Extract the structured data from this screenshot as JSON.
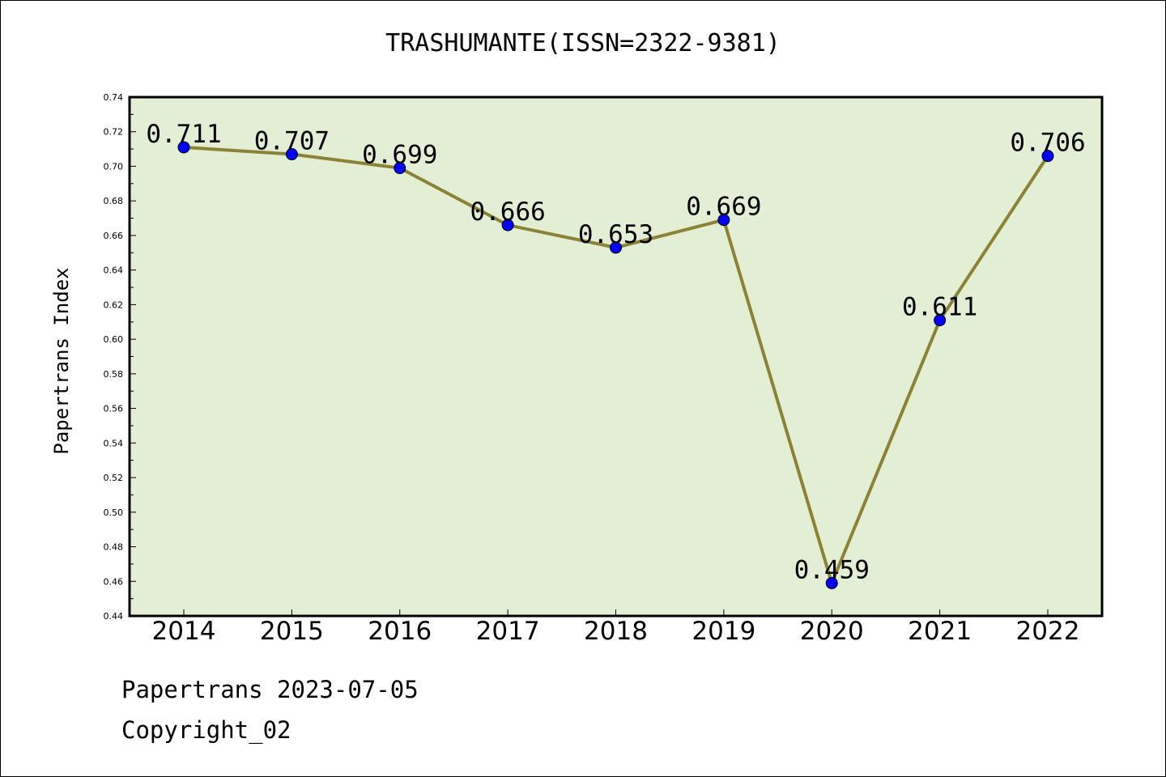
{
  "chart_data": {
    "type": "line",
    "title": "TRASHUMANTE(ISSN=2322-9381)",
    "xlabel": "",
    "ylabel": "Papertrans Index",
    "categories": [
      "2014",
      "2015",
      "2016",
      "2017",
      "2018",
      "2019",
      "2020",
      "2021",
      "2022"
    ],
    "series": [
      {
        "values": [
          0.711,
          0.707,
          0.699,
          0.666,
          0.653,
          0.669,
          0.459,
          0.611,
          0.706
        ]
      }
    ],
    "data_labels": [
      "0.711",
      "0.707",
      "0.699",
      "0.666",
      "0.653",
      "0.669",
      "0.459",
      "0.611",
      "0.706"
    ],
    "ylim": [
      0.44,
      0.74
    ],
    "yticks": [
      "0.44",
      "0.46",
      "0.48",
      "0.50",
      "0.52",
      "0.54",
      "0.56",
      "0.58",
      "0.60",
      "0.62",
      "0.64",
      "0.66",
      "0.68",
      "0.70",
      "0.72",
      "0.74"
    ],
    "grid": false,
    "legend": "none",
    "colors": {
      "plot_bg": "#e2efd5",
      "line": "#8b8236",
      "marker": "#0000ff"
    }
  },
  "footer": {
    "line1": "Papertrans 2023-07-05",
    "line2": "Copyright_02"
  }
}
